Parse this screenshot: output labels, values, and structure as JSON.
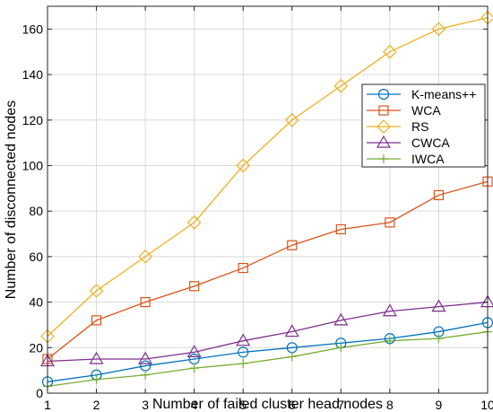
{
  "chart_data": {
    "type": "line",
    "title": "",
    "xlabel": "Number of failed cluster head nodes",
    "ylabel": "Number of disconnected nodes",
    "x": [
      1,
      2,
      3,
      4,
      5,
      6,
      7,
      8,
      9,
      10
    ],
    "xlim": [
      1,
      10
    ],
    "ylim": [
      0,
      170
    ],
    "xticks": [
      1,
      2,
      3,
      4,
      5,
      6,
      7,
      8,
      9,
      10
    ],
    "yticks": [
      0,
      20,
      40,
      60,
      80,
      100,
      120,
      140,
      160
    ],
    "grid": true,
    "legend_position": "right",
    "series": [
      {
        "name": "K-means++",
        "color": "#0072BD",
        "marker": "circle",
        "values": [
          5,
          8,
          12,
          15,
          18,
          20,
          22,
          24,
          27,
          31
        ]
      },
      {
        "name": "WCA",
        "color": "#D95319",
        "marker": "square",
        "values": [
          15,
          32,
          40,
          47,
          55,
          65,
          72,
          75,
          87,
          93
        ]
      },
      {
        "name": "RS",
        "color": "#EDB120",
        "marker": "diamond",
        "values": [
          25,
          45,
          60,
          75,
          100,
          120,
          135,
          150,
          160,
          165
        ]
      },
      {
        "name": "CWCA",
        "color": "#7E2F8E",
        "marker": "triangle",
        "values": [
          14,
          15,
          15,
          18,
          23,
          27,
          32,
          36,
          38,
          40
        ]
      },
      {
        "name": "IWCA",
        "color": "#77AC30",
        "marker": "plus",
        "values": [
          3,
          6,
          8,
          11,
          13,
          16,
          20,
          23,
          24,
          27
        ]
      }
    ]
  }
}
